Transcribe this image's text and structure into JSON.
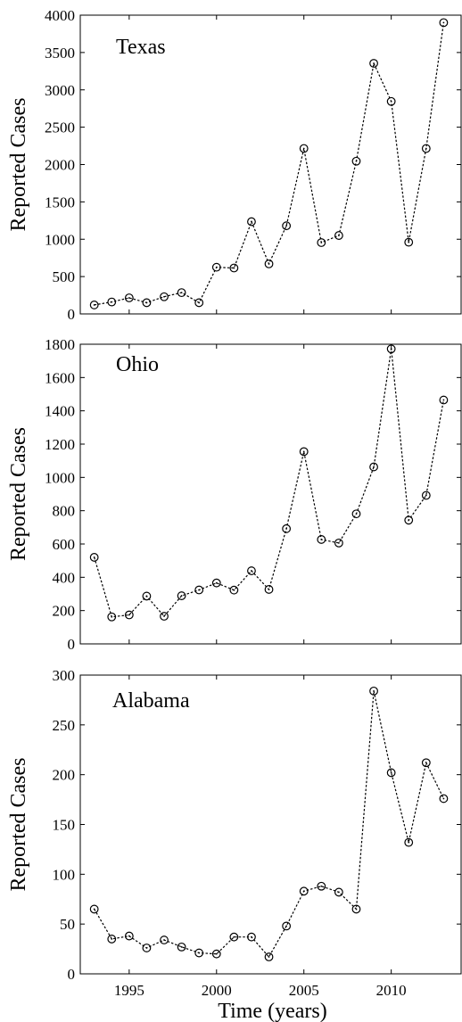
{
  "chart_data": [
    {
      "type": "line",
      "title": "Texas",
      "ylabel": "Reported Cases",
      "xlabel": "",
      "xlim": [
        1992.2,
        2014
      ],
      "ylim": [
        0,
        4000
      ],
      "yticks": [
        0,
        500,
        1000,
        1500,
        2000,
        2500,
        3000,
        3500,
        4000
      ],
      "xticks": [],
      "x": [
        1993,
        1994,
        1995,
        1996,
        1997,
        1998,
        1999,
        2000,
        2001,
        2002,
        2003,
        2004,
        2005,
        2006,
        2007,
        2008,
        2009,
        2010,
        2011,
        2012,
        2013
      ],
      "values": [
        120,
        160,
        215,
        150,
        230,
        285,
        150,
        625,
        615,
        1235,
        670,
        1180,
        2215,
        955,
        1050,
        2045,
        3355,
        2845,
        960,
        2215,
        3900
      ]
    },
    {
      "type": "line",
      "title": "Ohio",
      "ylabel": "Reported Cases",
      "xlabel": "",
      "xlim": [
        1992.2,
        2014
      ],
      "ylim": [
        0,
        1800
      ],
      "yticks": [
        0,
        200,
        400,
        600,
        800,
        1000,
        1200,
        1400,
        1600,
        1800
      ],
      "xticks": [],
      "x": [
        1993,
        1994,
        1995,
        1996,
        1997,
        1998,
        1999,
        2000,
        2001,
        2002,
        2003,
        2004,
        2005,
        2006,
        2007,
        2008,
        2009,
        2010,
        2011,
        2012,
        2013
      ],
      "values": [
        520,
        162,
        174,
        287,
        166,
        289,
        324,
        366,
        323,
        439,
        327,
        692,
        1155,
        627,
        606,
        781,
        1063,
        1772,
        743,
        892,
        1465
      ]
    },
    {
      "type": "line",
      "title": "Alabama",
      "ylabel": "Reported Cases",
      "xlabel": "Time (years)",
      "xlim": [
        1992.2,
        2014
      ],
      "ylim": [
        0,
        300
      ],
      "yticks": [
        0,
        50,
        100,
        150,
        200,
        250,
        300
      ],
      "xticks": [
        1995,
        2000,
        2005,
        2010
      ],
      "x": [
        1993,
        1994,
        1995,
        1996,
        1997,
        1998,
        1999,
        2000,
        2001,
        2002,
        2003,
        2004,
        2005,
        2006,
        2007,
        2008,
        2009,
        2010,
        2011,
        2012,
        2013
      ],
      "values": [
        65,
        35,
        38,
        26,
        34,
        27,
        21,
        20,
        37,
        37,
        17,
        48,
        83,
        88,
        82,
        65,
        284,
        202,
        132,
        212,
        176
      ]
    }
  ]
}
